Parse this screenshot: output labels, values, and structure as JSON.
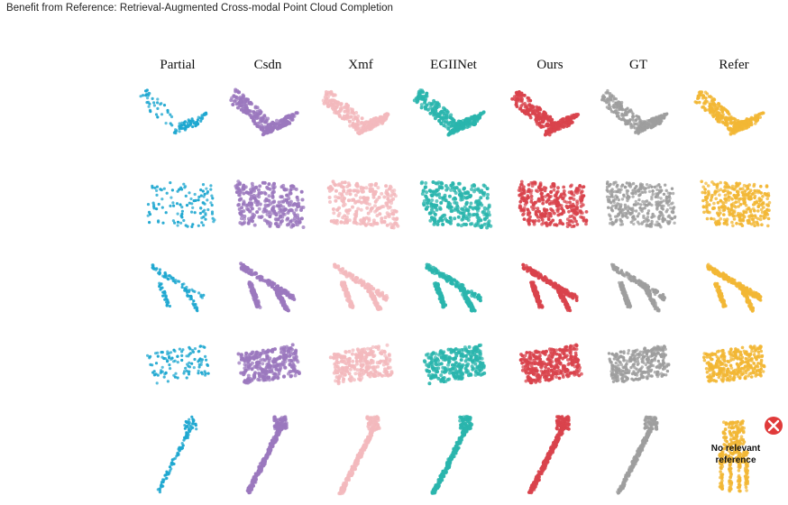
{
  "header_text": "Benefit from Reference: Retrieval-Augmented Cross-modal Point Cloud Completion",
  "columns": [
    "Partial",
    "Csdn",
    "Xmf",
    "EGIINet",
    "Ours",
    "GT",
    "Refer"
  ],
  "column_colors": [
    "#1ea7d0",
    "#9b78be",
    "#f3b9bd",
    "#2ab5ad",
    "#d9434c",
    "#9e9e9e",
    "#f2b735"
  ],
  "rows": [
    "l-shape-table",
    "cabinet",
    "folding-chair",
    "sofa",
    "lamp"
  ],
  "reference_note": {
    "line1": "No relevant",
    "line2": "reference",
    "icon": "x-circle-icon",
    "icon_color": "#e03a3a"
  }
}
